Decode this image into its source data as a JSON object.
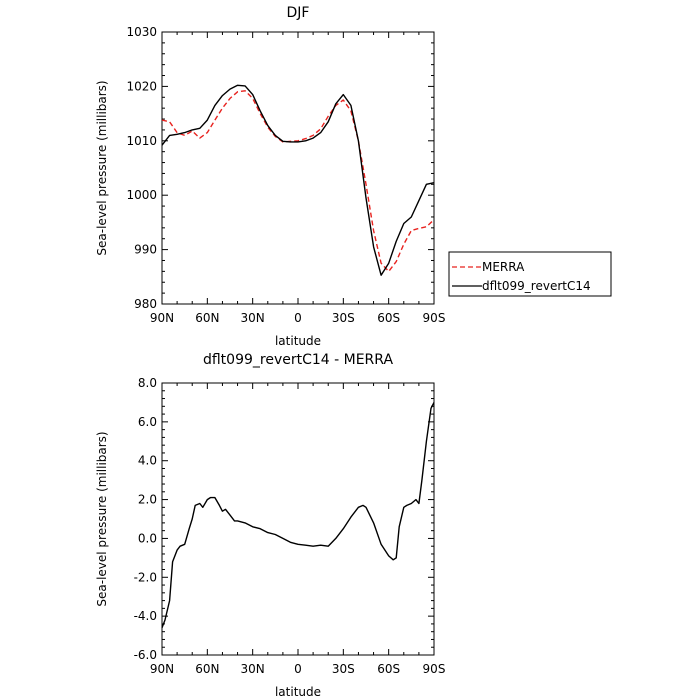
{
  "chart_data": [
    {
      "type": "line",
      "title": "DJF",
      "xlabel": "latitude",
      "ylabel": "Sea-level pressure (millibars)",
      "ylim": [
        980,
        1030
      ],
      "xlim": [
        90,
        -90
      ],
      "x_ticks": [
        90,
        60,
        30,
        0,
        -30,
        -60,
        -90
      ],
      "x_tick_labels": [
        "90N",
        "60N",
        "30N",
        "0",
        "30S",
        "60S",
        "90S"
      ],
      "y_ticks": [
        980,
        990,
        1000,
        1010,
        1020,
        1030
      ],
      "y_tick_labels": [
        "980",
        "990",
        "1000",
        "1010",
        "1020",
        "1030"
      ],
      "grid": false,
      "legend_position": "right",
      "series": [
        {
          "name": "MERRA",
          "color": "#e8231f",
          "dash": "dashed",
          "x": [
            90,
            85,
            80,
            75,
            70,
            65,
            60,
            55,
            50,
            45,
            40,
            35,
            30,
            25,
            20,
            15,
            10,
            5,
            0,
            -5,
            -10,
            -15,
            -20,
            -25,
            -30,
            -35,
            -40,
            -45,
            -50,
            -55,
            -60,
            -65,
            -70,
            -75,
            -80,
            -85,
            -90
          ],
          "y": [
            1013.8,
            1013.5,
            1011.5,
            1011.0,
            1011.8,
            1010.5,
            1011.5,
            1013.8,
            1016.0,
            1017.8,
            1019.0,
            1019.2,
            1017.8,
            1015.0,
            1012.5,
            1010.8,
            1009.8,
            1009.9,
            1010.0,
            1010.4,
            1011.0,
            1012.2,
            1014.5,
            1016.5,
            1017.5,
            1015.5,
            1010.0,
            1002.0,
            993.5,
            987.5,
            986.0,
            987.8,
            991.0,
            993.5,
            993.9,
            994.2,
            995.5
          ]
        },
        {
          "name": "dflt099_revertC14",
          "color": "#000000",
          "dash": "solid",
          "x": [
            90,
            85,
            80,
            75,
            70,
            65,
            60,
            55,
            50,
            45,
            40,
            35,
            30,
            25,
            20,
            15,
            10,
            5,
            0,
            -5,
            -10,
            -15,
            -20,
            -25,
            -30,
            -35,
            -40,
            -45,
            -50,
            -55,
            -60,
            -65,
            -70,
            -75,
            -80,
            -85,
            -90
          ],
          "y": [
            1009.2,
            1011.0,
            1011.2,
            1011.5,
            1012.0,
            1012.3,
            1013.8,
            1016.5,
            1018.3,
            1019.5,
            1020.2,
            1020.1,
            1018.5,
            1015.5,
            1012.8,
            1011.0,
            1009.9,
            1009.8,
            1009.8,
            1010.0,
            1010.5,
            1011.5,
            1013.5,
            1016.8,
            1018.5,
            1016.5,
            1010.0,
            999.5,
            990.5,
            985.3,
            987.5,
            991.5,
            994.8,
            996.0,
            999.0,
            1002.0,
            1002.3
          ]
        }
      ]
    },
    {
      "type": "line",
      "title": "dflt099_revertC14 - MERRA",
      "xlabel": "latitude",
      "ylabel": "Sea-level pressure (millibars)",
      "ylim": [
        -6,
        8
      ],
      "xlim": [
        90,
        -90
      ],
      "x_ticks": [
        90,
        60,
        30,
        0,
        -30,
        -60,
        -90
      ],
      "x_tick_labels": [
        "90N",
        "60N",
        "30N",
        "0",
        "30S",
        "60S",
        "90S"
      ],
      "y_ticks": [
        -6,
        -4,
        -2,
        0,
        2,
        4,
        6,
        8
      ],
      "y_tick_labels": [
        "-6.0",
        "-4.0",
        "-2.0",
        "0.0",
        "2.0",
        "4.0",
        "6.0",
        "8.0"
      ],
      "grid": false,
      "series": [
        {
          "color": "#000000",
          "dash": "solid",
          "x": [
            90,
            88,
            85,
            83,
            80,
            78,
            75,
            72,
            70,
            68,
            65,
            63,
            60,
            58,
            55,
            52,
            50,
            48,
            45,
            42,
            40,
            35,
            30,
            25,
            20,
            15,
            10,
            5,
            0,
            -5,
            -10,
            -15,
            -20,
            -25,
            -30,
            -35,
            -40,
            -43,
            -45,
            -50,
            -55,
            -60,
            -63,
            -65,
            -67,
            -70,
            -72,
            -75,
            -78,
            -80,
            -82,
            -85,
            -88,
            -90
          ],
          "y": [
            -4.6,
            -4.2,
            -3.2,
            -1.2,
            -0.6,
            -0.4,
            -0.3,
            0.5,
            1.0,
            1.7,
            1.8,
            1.6,
            2.0,
            2.1,
            2.1,
            1.7,
            1.4,
            1.5,
            1.2,
            0.9,
            0.9,
            0.8,
            0.6,
            0.5,
            0.3,
            0.2,
            0.0,
            -0.2,
            -0.3,
            -0.35,
            -0.4,
            -0.35,
            -0.4,
            0.0,
            0.5,
            1.1,
            1.6,
            1.7,
            1.6,
            0.8,
            -0.3,
            -0.9,
            -1.1,
            -1.0,
            0.6,
            1.6,
            1.7,
            1.8,
            2.0,
            1.8,
            3.0,
            5.0,
            6.7,
            7.0
          ]
        }
      ]
    }
  ]
}
